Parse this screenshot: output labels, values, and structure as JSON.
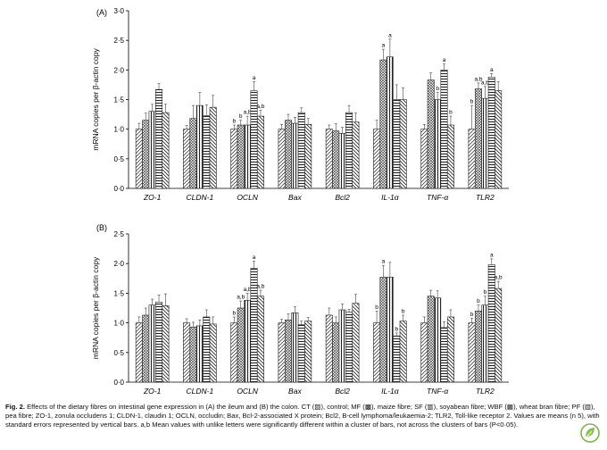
{
  "figure": {
    "caption_label": "Fig. 2.",
    "caption_text": "Effects of the dietary fibres on intestinal gene expression in (A) the ileum and (B) the colon. CT (▨), control; MF (▩), maize fibre; SF (▥), soyabean fibre; WBF (▦), wheat bran fibre; PF (▧), pea fibre; ZO-1, zonula occludens 1; CLDN-1, claudin 1; OCLN, occludin; Bax, Bcl-2-associated X protein; Bcl2, B-cell lymphoma/leukaemia-2; TLR2, Toll-like receptor 2. Values are means (n 5), with standard errors represented by vertical bars. a,b Mean values with unlike letters were significantly different within a cluster of bars, not across the clusters of bars (P<0·05)."
  },
  "chart_data": [
    {
      "type": "bar",
      "panel_label": "(A)",
      "ylabel": "mRNA copies per β-actin copy",
      "ylim": [
        0,
        3
      ],
      "yticks": [
        "0·0",
        "0·5",
        "1·0",
        "1·5",
        "2·0",
        "2·5",
        "3·0"
      ],
      "categories": [
        "ZO-1",
        "CLDN-1",
        "OCLN",
        "Bax",
        "Bcl2",
        "IL-1α",
        "TNF-α",
        "TLR2"
      ],
      "series": [
        {
          "name": "CT",
          "pattern": "diag-left",
          "values": [
            1.0,
            1.0,
            1.0,
            1.0,
            1.0,
            1.0,
            1.0,
            1.0
          ],
          "errors": [
            0.1,
            0.06,
            0.07,
            0.08,
            0.07,
            0.15,
            0.08,
            0.4
          ]
        },
        {
          "name": "MF",
          "pattern": "cross",
          "values": [
            1.15,
            1.18,
            1.07,
            1.15,
            0.97,
            2.17,
            1.83,
            1.68
          ],
          "errors": [
            0.12,
            0.22,
            0.08,
            0.1,
            0.12,
            0.18,
            0.12,
            0.1
          ]
        },
        {
          "name": "SF",
          "pattern": "vertical",
          "values": [
            1.3,
            1.4,
            1.07,
            1.1,
            0.93,
            2.22,
            1.5,
            1.52
          ],
          "errors": [
            0.12,
            0.22,
            0.15,
            0.1,
            0.1,
            0.3,
            0.12,
            0.2
          ]
        },
        {
          "name": "WBF",
          "pattern": "horizontal",
          "values": [
            1.67,
            1.23,
            1.65,
            1.28,
            1.28,
            1.5,
            2.0,
            1.88
          ],
          "errors": [
            0.1,
            0.18,
            0.15,
            0.08,
            0.12,
            0.25,
            0.1,
            0.06
          ]
        },
        {
          "name": "PF",
          "pattern": "diag-right",
          "values": [
            1.28,
            1.37,
            1.22,
            1.08,
            1.12,
            1.5,
            1.07,
            1.65
          ],
          "errors": [
            0.14,
            0.2,
            0.1,
            0.1,
            0.15,
            0.2,
            0.15,
            0.15
          ]
        }
      ],
      "annotations": [
        [
          "",
          "",
          "",
          "",
          ""
        ],
        [
          "",
          "",
          "",
          "",
          ""
        ],
        [
          "b",
          "b",
          "a,b",
          "a",
          "a,b"
        ],
        [
          "",
          "",
          "",
          "",
          ""
        ],
        [
          "",
          "",
          "",
          "",
          ""
        ],
        [
          "",
          "a",
          "a",
          "",
          ""
        ],
        [
          "",
          "",
          "b",
          "a",
          "b"
        ],
        [
          "b",
          "a,b",
          "a,b",
          "a",
          ""
        ]
      ]
    },
    {
      "type": "bar",
      "panel_label": "(B)",
      "ylabel": "mRNA copies per β-actin copy",
      "ylim": [
        0,
        2.5
      ],
      "yticks": [
        "0·0",
        "0·5",
        "1·0",
        "1·5",
        "2·0",
        "2·5"
      ],
      "categories": [
        "ZO-1",
        "CLDN-1",
        "OCLN",
        "Bax",
        "Bcl2",
        "IL-1α",
        "TNF-α",
        "TLR2"
      ],
      "series": [
        {
          "name": "CT",
          "pattern": "diag-left",
          "values": [
            1.0,
            1.0,
            1.0,
            1.0,
            1.13,
            1.0,
            1.0,
            1.0
          ],
          "errors": [
            0.1,
            0.07,
            0.1,
            0.06,
            0.12,
            0.2,
            0.1,
            0.08
          ]
        },
        {
          "name": "MF",
          "pattern": "cross",
          "values": [
            1.13,
            0.93,
            1.25,
            1.05,
            1.0,
            1.77,
            1.45,
            1.2
          ],
          "errors": [
            0.12,
            0.08,
            0.12,
            0.1,
            0.1,
            0.2,
            0.1,
            0.1
          ]
        },
        {
          "name": "SF",
          "pattern": "vertical",
          "values": [
            1.3,
            0.95,
            1.38,
            1.17,
            1.22,
            1.77,
            1.42,
            1.3
          ],
          "errors": [
            0.1,
            0.1,
            0.12,
            0.1,
            0.1,
            0.25,
            0.12,
            0.15
          ]
        },
        {
          "name": "WBF",
          "pattern": "horizontal",
          "values": [
            1.35,
            1.1,
            1.92,
            0.97,
            1.18,
            0.78,
            0.92,
            1.98
          ],
          "errors": [
            0.12,
            0.12,
            0.12,
            0.06,
            0.05,
            0.05,
            0.1,
            0.1
          ]
        },
        {
          "name": "PF",
          "pattern": "diag-right",
          "values": [
            1.29,
            0.98,
            1.45,
            1.03,
            1.33,
            1.03,
            1.1,
            1.58
          ],
          "errors": [
            0.2,
            0.12,
            0.1,
            0.06,
            0.15,
            0.1,
            0.12,
            0.12
          ]
        }
      ],
      "annotations": [
        [
          "",
          "",
          "",
          "",
          ""
        ],
        [
          "",
          "",
          "",
          "",
          ""
        ],
        [
          "b",
          "a,b",
          "a,b",
          "a",
          "a,b"
        ],
        [
          "",
          "",
          "",
          "",
          ""
        ],
        [
          "",
          "",
          "",
          "",
          ""
        ],
        [
          "b",
          "a",
          "",
          "b",
          "b"
        ],
        [
          "",
          "",
          "",
          "",
          ""
        ],
        [
          "b",
          "b",
          "b",
          "a",
          "a,b"
        ]
      ]
    }
  ]
}
